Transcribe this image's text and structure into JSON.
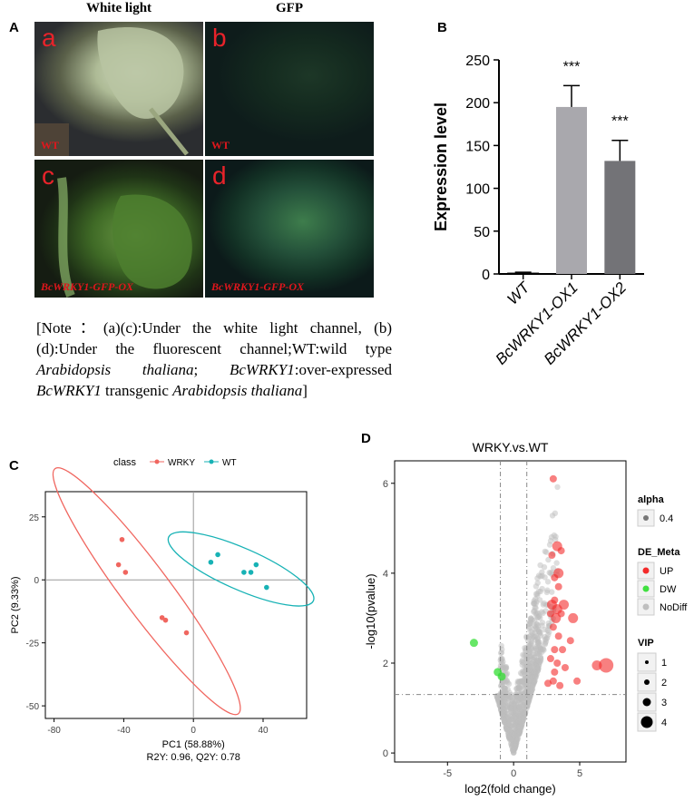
{
  "panels": {
    "a_label": "A",
    "b_label": "B",
    "c_label": "C",
    "d_label": "D"
  },
  "panel_a": {
    "col_white": "White light",
    "col_gfp": "GFP",
    "tiles": [
      {
        "tag": "a",
        "caption": "WT"
      },
      {
        "tag": "b",
        "caption": "WT"
      },
      {
        "tag": "c",
        "caption": "BcWRKY1-GFP-OX"
      },
      {
        "tag": "d",
        "caption": "BcWRKY1-GFP-OX"
      }
    ],
    "note": {
      "p1": "[Note：(a)(c):Under the white light channel, (b)(d):Under the fluorescent channel;WT:wild type ",
      "i1": "Arabidopsis thaliana",
      "p2": "; ",
      "i2": "BcWRKY1",
      "p3": ":over-expressed ",
      "i3": "BcWRKY1",
      "p4": " transgenic ",
      "i4": "Arabidopsis thaliana",
      "p5": "]"
    }
  },
  "chart_data": [
    {
      "id": "B",
      "type": "bar",
      "categories": [
        "WT",
        "BcWRKY1-OX1",
        "BcWRKY1-OX2"
      ],
      "values": [
        1,
        195,
        132
      ],
      "errors": [
        1,
        25,
        24
      ],
      "significance": [
        "",
        "***",
        "***"
      ],
      "bar_colors": [
        "#ffffff",
        "#a9a8ad",
        "#737377"
      ],
      "ylabel": "Expression level",
      "ylim": [
        0,
        250
      ],
      "yticks": [
        0,
        50,
        100,
        150,
        200,
        250
      ]
    },
    {
      "id": "C",
      "type": "scatter",
      "legend_title": "class",
      "series": [
        {
          "name": "WRKY",
          "color": "#f0665f",
          "points": [
            [
              -41,
              16
            ],
            [
              -43,
              6
            ],
            [
              -39,
              3
            ],
            [
              -18,
              -15
            ],
            [
              -16,
              -16
            ],
            [
              -4,
              -21
            ]
          ]
        },
        {
          "name": "WT",
          "color": "#17b2b5",
          "points": [
            [
              10,
              7
            ],
            [
              14,
              10
            ],
            [
              29,
              3
            ],
            [
              33,
              3
            ],
            [
              36,
              6
            ],
            [
              42,
              -3
            ]
          ]
        }
      ],
      "xlabel": "PC1 (58.88%)",
      "ylabel": "PC2 (9.33%)",
      "subcaption": "R2Y: 0.96, Q2Y: 0.78",
      "xlim": [
        -85,
        65
      ],
      "ylim": [
        -55,
        35
      ],
      "xticks": [
        -80,
        -40,
        0,
        40
      ],
      "yticks": [
        25,
        0,
        -25,
        -50
      ],
      "grid": false
    },
    {
      "id": "D",
      "type": "scatter",
      "title": "WRKY.vs.WT",
      "xlabel": "log2(fold change)",
      "ylabel": "-log10(pvalue)",
      "xlim": [
        -9,
        8.5
      ],
      "ylim": [
        -0.2,
        6.5
      ],
      "xticks": [
        -5,
        0,
        5
      ],
      "yticks": [
        0,
        2,
        4,
        6
      ],
      "threshold_x": [
        -1,
        1
      ],
      "threshold_y": 1.3,
      "up_points": [
        [
          3,
          6.1
        ],
        [
          3.3,
          4.6
        ],
        [
          3.6,
          4.5
        ],
        [
          2.9,
          4.4
        ],
        [
          3.4,
          4.0
        ],
        [
          3.1,
          3.9
        ],
        [
          3.4,
          3.7
        ],
        [
          3.8,
          3.3
        ],
        [
          3.1,
          3.4
        ],
        [
          2.9,
          3.3
        ],
        [
          3.3,
          3.2
        ],
        [
          3.6,
          3.1
        ],
        [
          3.2,
          3.0
        ],
        [
          2.8,
          3.1
        ],
        [
          3.0,
          2.8
        ],
        [
          4.5,
          3.0
        ],
        [
          3.4,
          2.6
        ],
        [
          3.7,
          2.3
        ],
        [
          3.1,
          2.3
        ],
        [
          2.8,
          2.1
        ],
        [
          3.3,
          2.0
        ],
        [
          3.9,
          1.9
        ],
        [
          3.1,
          1.8
        ],
        [
          4.8,
          1.6
        ],
        [
          7.0,
          1.95
        ],
        [
          6.3,
          1.95
        ],
        [
          3.0,
          1.6
        ],
        [
          3.5,
          1.5
        ],
        [
          2.6,
          1.55
        ],
        [
          4.3,
          2.5
        ]
      ],
      "up_sizes": [
        2,
        3,
        2,
        2,
        3,
        2,
        2,
        3,
        2,
        3,
        3,
        2,
        3,
        2,
        2,
        3,
        2,
        2,
        2,
        2,
        2,
        2,
        2,
        2,
        4,
        3,
        2,
        2,
        2,
        2
      ],
      "dw_points": [
        [
          -3.0,
          2.45
        ],
        [
          -1.2,
          1.8
        ],
        [
          -0.9,
          1.7
        ]
      ],
      "legend": {
        "alpha": {
          "title": "alpha",
          "items": [
            "0.4"
          ]
        },
        "de_meta": {
          "title": "DE_Meta",
          "items": [
            {
              "label": "UP",
              "color": "#f42b2b"
            },
            {
              "label": "DW",
              "color": "#3fe03f"
            },
            {
              "label": "NoDiff",
              "color": "#bfbfbf"
            }
          ]
        },
        "vip": {
          "title": "VIP",
          "items": [
            "1",
            "2",
            "3",
            "4"
          ]
        }
      }
    }
  ]
}
